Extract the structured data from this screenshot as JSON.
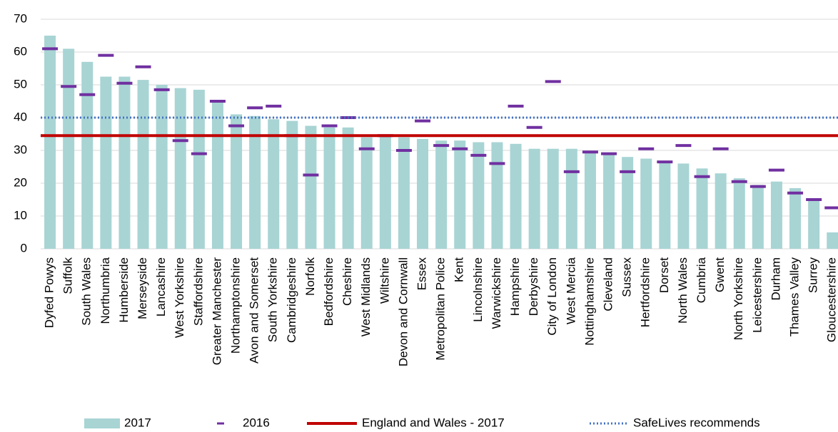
{
  "chart_data": {
    "type": "bar",
    "categories": [
      "Dyfed Powys",
      "Suffolk",
      "South Wales",
      "Northumbria",
      "Humberside",
      "Merseyside",
      "Lancashire",
      "West Yorkshire",
      "Staffordshire",
      "Greater Manchester",
      "Northamptonshire",
      "Avon and Somerset",
      "South Yorkshire",
      "Cambridgeshire",
      "Norfolk",
      "Bedfordshire",
      "Cheshire",
      "West Midlands",
      "Wiltshire",
      "Devon and Cornwall",
      "Essex",
      "Metropolitan Police",
      "Kent",
      "Lincolnshire",
      "Warwickshire",
      "Hampshire",
      "Derbyshire",
      "City of London",
      "West Mercia",
      "Nottinghamshire",
      "Cleveland",
      "Sussex",
      "Hertfordshire",
      "Dorset",
      "North Wales",
      "Cumbria",
      "Gwent",
      "North Yorkshire",
      "Leicestershire",
      "Durham",
      "Thames Valley",
      "Surrey",
      "Gloucestershire"
    ],
    "series": [
      {
        "name": "2017",
        "color": "#a8d4d4",
        "marker": "bar",
        "values": [
          65,
          61,
          57,
          52.5,
          52.5,
          51.5,
          50,
          49,
          48.5,
          45,
          41,
          40.5,
          39.5,
          39,
          37.5,
          37,
          37,
          34,
          34.5,
          34,
          33.5,
          33,
          33,
          32.5,
          32.5,
          32,
          30.5,
          30.5,
          30.5,
          29.5,
          29,
          28,
          27.5,
          26.5,
          26,
          24.5,
          23,
          21.5,
          19.5,
          20.5,
          18.5,
          15,
          5
        ]
      },
      {
        "name": "2016",
        "color": "#7030a0",
        "marker": "dash",
        "values": [
          61,
          49.5,
          47,
          59,
          50.5,
          55.5,
          48.5,
          33,
          29,
          45,
          37.5,
          43,
          43.5,
          34.5,
          22.5,
          37.5,
          40,
          30.5,
          34.5,
          30,
          39,
          31.5,
          30.5,
          28.5,
          26,
          43.5,
          37,
          51,
          23.5,
          29.5,
          29,
          23.5,
          30.5,
          26.5,
          31.5,
          22,
          30.5,
          20.5,
          19,
          24,
          17,
          15,
          12.5
        ]
      }
    ],
    "reference_lines": [
      {
        "name": "England and Wales - 2017",
        "color": "#c00000",
        "style": "solid",
        "value": 34.5
      },
      {
        "name": "SafeLives recommends",
        "color": "#4472c4",
        "style": "dotted",
        "value": 40
      }
    ],
    "ylim": [
      0,
      70
    ],
    "yticks": [
      0,
      10,
      20,
      30,
      40,
      50,
      60,
      70
    ],
    "grid": true,
    "legend": "bottom"
  }
}
